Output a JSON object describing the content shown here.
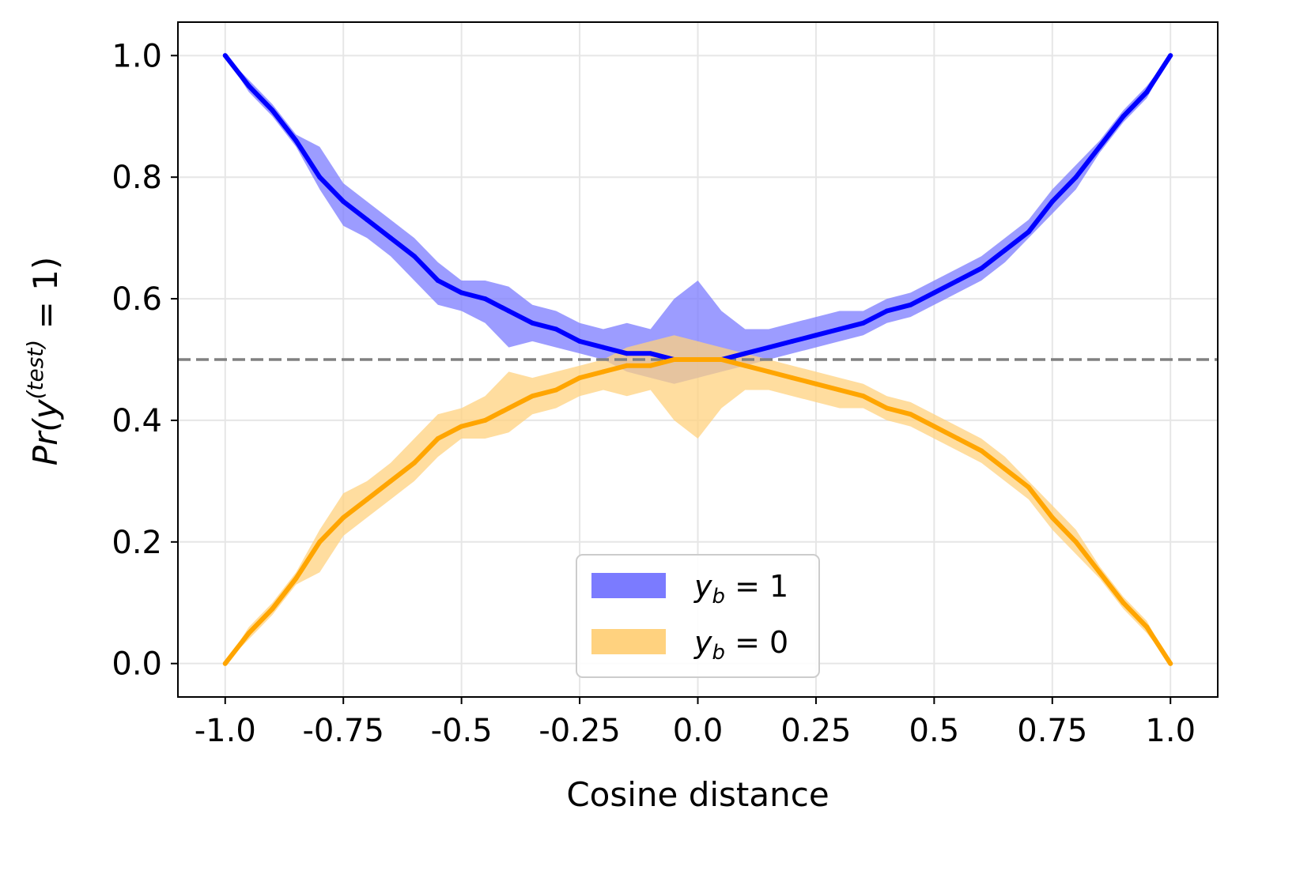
{
  "chart_data": {
    "type": "line",
    "xlabel": "Cosine distance",
    "ylabel": {
      "prefix": "Pr(y",
      "superscript": "(test)",
      "suffix": " = 1)"
    },
    "xlim": [
      -1.1,
      1.1
    ],
    "ylim": [
      -0.055,
      1.055
    ],
    "x_ticks": [
      -1.0,
      -0.75,
      -0.5,
      -0.25,
      0.0,
      0.25,
      0.5,
      0.75,
      1.0
    ],
    "x_tick_labels": [
      "-1.0",
      "-0.75",
      "-0.5",
      "-0.25",
      "0.0",
      "0.25",
      "0.5",
      "0.75",
      "1.0"
    ],
    "y_ticks": [
      0.0,
      0.2,
      0.4,
      0.6,
      0.8,
      1.0
    ],
    "y_tick_labels": [
      "0.0",
      "0.2",
      "0.4",
      "0.6",
      "0.8",
      "1.0"
    ],
    "grid": true,
    "reference_line": {
      "y": 0.5,
      "style": "dashed",
      "color": "#808080"
    },
    "legend_position": "lower center",
    "series": [
      {
        "name": "y_b = 1",
        "legend_label": {
          "var": "y",
          "sub": "b",
          "rest": " = 1"
        },
        "color": "#0000ff",
        "band_color": "#7b7bff",
        "x": [
          -1.0,
          -0.95,
          -0.9,
          -0.85,
          -0.8,
          -0.75,
          -0.7,
          -0.65,
          -0.6,
          -0.55,
          -0.5,
          -0.45,
          -0.4,
          -0.35,
          -0.3,
          -0.25,
          -0.2,
          -0.15,
          -0.1,
          -0.05,
          0.0,
          0.05,
          0.1,
          0.15,
          0.2,
          0.25,
          0.3,
          0.35,
          0.4,
          0.45,
          0.5,
          0.55,
          0.6,
          0.65,
          0.7,
          0.75,
          0.8,
          0.85,
          0.9,
          0.95,
          1.0
        ],
        "values": [
          1.0,
          0.95,
          0.91,
          0.86,
          0.8,
          0.76,
          0.73,
          0.7,
          0.67,
          0.63,
          0.61,
          0.6,
          0.58,
          0.56,
          0.55,
          0.53,
          0.52,
          0.51,
          0.51,
          0.5,
          0.5,
          0.5,
          0.51,
          0.52,
          0.53,
          0.54,
          0.55,
          0.56,
          0.58,
          0.59,
          0.61,
          0.63,
          0.65,
          0.68,
          0.71,
          0.76,
          0.8,
          0.85,
          0.9,
          0.94,
          1.0
        ],
        "lower": [
          1.0,
          0.94,
          0.9,
          0.85,
          0.78,
          0.72,
          0.7,
          0.67,
          0.63,
          0.59,
          0.58,
          0.56,
          0.52,
          0.53,
          0.52,
          0.51,
          0.5,
          0.48,
          0.47,
          0.46,
          0.47,
          0.48,
          0.49,
          0.5,
          0.51,
          0.52,
          0.53,
          0.54,
          0.56,
          0.57,
          0.59,
          0.61,
          0.63,
          0.66,
          0.7,
          0.74,
          0.78,
          0.84,
          0.89,
          0.93,
          1.0
        ],
        "upper": [
          1.0,
          0.96,
          0.92,
          0.87,
          0.85,
          0.79,
          0.76,
          0.73,
          0.7,
          0.66,
          0.63,
          0.63,
          0.62,
          0.59,
          0.58,
          0.56,
          0.55,
          0.56,
          0.55,
          0.6,
          0.63,
          0.58,
          0.55,
          0.55,
          0.56,
          0.57,
          0.58,
          0.58,
          0.6,
          0.61,
          0.63,
          0.65,
          0.67,
          0.7,
          0.73,
          0.78,
          0.82,
          0.86,
          0.91,
          0.95,
          1.0
        ]
      },
      {
        "name": "y_b = 0",
        "legend_label": {
          "var": "y",
          "sub": "b",
          "rest": " = 0"
        },
        "color": "#ffa500",
        "band_color": "#ffd27f",
        "x": [
          -1.0,
          -0.95,
          -0.9,
          -0.85,
          -0.8,
          -0.75,
          -0.7,
          -0.65,
          -0.6,
          -0.55,
          -0.5,
          -0.45,
          -0.4,
          -0.35,
          -0.3,
          -0.25,
          -0.2,
          -0.15,
          -0.1,
          -0.05,
          0.0,
          0.05,
          0.1,
          0.15,
          0.2,
          0.25,
          0.3,
          0.35,
          0.4,
          0.45,
          0.5,
          0.55,
          0.6,
          0.65,
          0.7,
          0.75,
          0.8,
          0.85,
          0.9,
          0.95,
          1.0
        ],
        "values": [
          0.0,
          0.05,
          0.09,
          0.14,
          0.2,
          0.24,
          0.27,
          0.3,
          0.33,
          0.37,
          0.39,
          0.4,
          0.42,
          0.44,
          0.45,
          0.47,
          0.48,
          0.49,
          0.49,
          0.5,
          0.5,
          0.5,
          0.49,
          0.48,
          0.47,
          0.46,
          0.45,
          0.44,
          0.42,
          0.41,
          0.39,
          0.37,
          0.35,
          0.32,
          0.29,
          0.24,
          0.2,
          0.15,
          0.1,
          0.06,
          0.0
        ],
        "lower": [
          0.0,
          0.04,
          0.08,
          0.13,
          0.15,
          0.21,
          0.24,
          0.27,
          0.3,
          0.34,
          0.37,
          0.37,
          0.38,
          0.41,
          0.42,
          0.44,
          0.45,
          0.44,
          0.45,
          0.4,
          0.37,
          0.42,
          0.45,
          0.45,
          0.44,
          0.43,
          0.42,
          0.42,
          0.4,
          0.39,
          0.37,
          0.35,
          0.33,
          0.3,
          0.27,
          0.22,
          0.18,
          0.14,
          0.09,
          0.05,
          0.0
        ],
        "upper": [
          0.0,
          0.06,
          0.1,
          0.15,
          0.22,
          0.28,
          0.3,
          0.33,
          0.37,
          0.41,
          0.42,
          0.44,
          0.48,
          0.47,
          0.48,
          0.49,
          0.5,
          0.52,
          0.53,
          0.54,
          0.53,
          0.52,
          0.51,
          0.5,
          0.49,
          0.48,
          0.47,
          0.46,
          0.44,
          0.43,
          0.41,
          0.39,
          0.37,
          0.34,
          0.3,
          0.26,
          0.22,
          0.16,
          0.11,
          0.07,
          0.0
        ]
      }
    ]
  }
}
